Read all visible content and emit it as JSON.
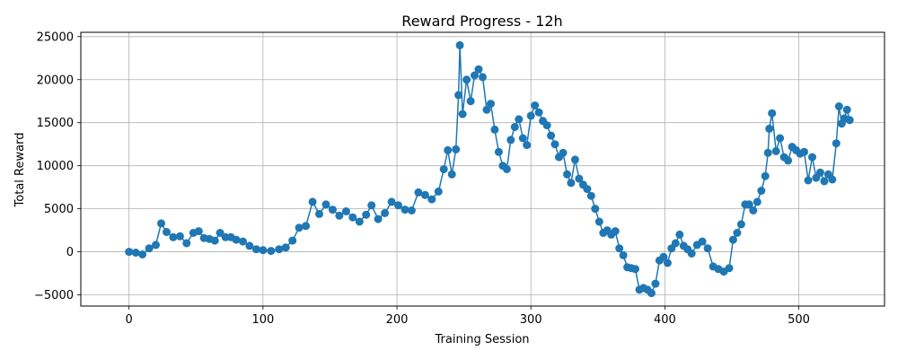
{
  "chart_data": {
    "type": "line",
    "title": "Reward Progress - 12h",
    "xlabel": "Training Session",
    "ylabel": "Total Reward",
    "xlim": [
      -36,
      564
    ],
    "ylim": [
      -6300,
      25500
    ],
    "xticks": [
      0,
      100,
      200,
      300,
      400,
      500
    ],
    "yticks": [
      -5000,
      0,
      5000,
      10000,
      15000,
      20000,
      25000
    ],
    "grid": true,
    "marker": "circle",
    "color": "#1f77b4",
    "series": [
      {
        "name": "Total Reward",
        "x": [
          0,
          5,
          10,
          15,
          20,
          24,
          28,
          33,
          38,
          43,
          48,
          52,
          56,
          60,
          64,
          68,
          72,
          76,
          80,
          85,
          90,
          95,
          100,
          106,
          112,
          117,
          122,
          127,
          132,
          137,
          142,
          147,
          152,
          157,
          162,
          167,
          172,
          177,
          181,
          186,
          191,
          196,
          201,
          206,
          211,
          216,
          221,
          226,
          231,
          235,
          238,
          241,
          244,
          246,
          247,
          249,
          252,
          255,
          258,
          261,
          264,
          267,
          270,
          273,
          276,
          279,
          282,
          285,
          288,
          291,
          294,
          297,
          300,
          303,
          306,
          309,
          312,
          315,
          318,
          321,
          324,
          327,
          330,
          333,
          336,
          339,
          342,
          345,
          348,
          351,
          354,
          357,
          360,
          363,
          366,
          369,
          372,
          375,
          378,
          381,
          384,
          387,
          390,
          393,
          396,
          399,
          402,
          405,
          408,
          411,
          414,
          417,
          420,
          424,
          428,
          432,
          436,
          440,
          444,
          448,
          451,
          454,
          457,
          460,
          463,
          466,
          469,
          472,
          475,
          477,
          478,
          480,
          483,
          486,
          489,
          492,
          495,
          498,
          501,
          504,
          507,
          510,
          513,
          516,
          519,
          522,
          525,
          528,
          530,
          532,
          534,
          536,
          538
        ],
        "y": [
          0,
          -100,
          -300,
          400,
          800,
          3300,
          2300,
          1700,
          1800,
          1000,
          2200,
          2400,
          1600,
          1500,
          1300,
          2200,
          1700,
          1700,
          1400,
          1200,
          700,
          300,
          200,
          100,
          300,
          500,
          1300,
          2800,
          3000,
          5800,
          4400,
          5500,
          4900,
          4200,
          4700,
          4000,
          3500,
          4300,
          5400,
          3800,
          4500,
          5800,
          5400,
          4900,
          4800,
          6900,
          6600,
          6100,
          7000,
          9600,
          11800,
          9000,
          11900,
          18200,
          24000,
          16000,
          20000,
          17500,
          20500,
          21200,
          20300,
          16500,
          17200,
          14200,
          11600,
          10000,
          9600,
          13000,
          14500,
          15400,
          13200,
          12400,
          15800,
          17000,
          16200,
          15200,
          14700,
          13500,
          12500,
          11000,
          11500,
          9000,
          8000,
          10700,
          8500,
          7800,
          7300,
          6500,
          5000,
          3500,
          2200,
          2500,
          2000,
          2400,
          400,
          -400,
          -1800,
          -1900,
          -2000,
          -4400,
          -4200,
          -4400,
          -4800,
          -3700,
          -1000,
          -600,
          -1300,
          400,
          1000,
          2000,
          700,
          300,
          -200,
          800,
          1200,
          400,
          -1700,
          -2000,
          -2300,
          -1900,
          1400,
          2200,
          3200,
          5500,
          5500,
          4800,
          5800,
          7100,
          8800,
          11500,
          14300,
          16100,
          11700,
          13200,
          11000,
          10600,
          12200,
          11800,
          11400,
          11600,
          8300,
          11000,
          8600,
          9200,
          8200,
          9000,
          8400,
          12600,
          16900,
          14900,
          15500,
          16500,
          15300
        ]
      }
    ]
  }
}
